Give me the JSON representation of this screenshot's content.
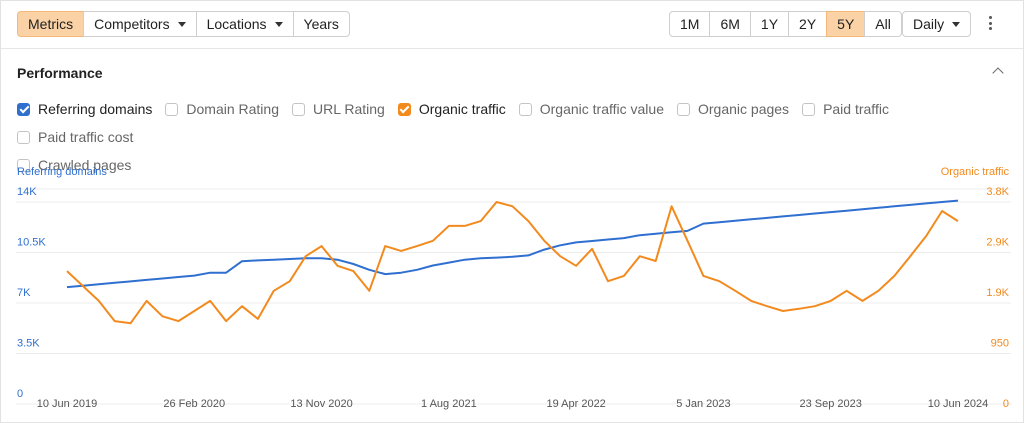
{
  "toolbar": {
    "left": [
      {
        "label": "Metrics",
        "active": true,
        "dropdown": false
      },
      {
        "label": "Competitors",
        "active": false,
        "dropdown": true
      },
      {
        "label": "Locations",
        "active": false,
        "dropdown": true
      },
      {
        "label": "Years",
        "active": false,
        "dropdown": false
      }
    ],
    "ranges": [
      {
        "label": "1M",
        "active": false
      },
      {
        "label": "6M",
        "active": false
      },
      {
        "label": "1Y",
        "active": false
      },
      {
        "label": "2Y",
        "active": false
      },
      {
        "label": "5Y",
        "active": true
      },
      {
        "label": "All",
        "active": false
      }
    ],
    "interval": {
      "label": "Daily",
      "dropdown": true
    }
  },
  "performance": {
    "title": "Performance",
    "metrics": [
      {
        "label": "Referring domains",
        "checked": true,
        "color": "#2f6fd0"
      },
      {
        "label": "Domain Rating",
        "checked": false
      },
      {
        "label": "URL Rating",
        "checked": false
      },
      {
        "label": "Organic traffic",
        "checked": true,
        "color": "#f28a1e"
      },
      {
        "label": "Organic traffic value",
        "checked": false
      },
      {
        "label": "Organic pages",
        "checked": false
      },
      {
        "label": "Paid traffic",
        "checked": false
      },
      {
        "label": "Paid traffic cost",
        "checked": false
      },
      {
        "label": "Crawled pages",
        "checked": false
      }
    ]
  },
  "chart_data": {
    "type": "line",
    "y_label": "Referring domains",
    "y2_label": "Organic traffic",
    "categories": [
      "10 Jun 2019",
      null,
      null,
      null,
      null,
      null,
      null,
      null,
      "26 Feb 2020",
      null,
      null,
      null,
      null,
      null,
      null,
      null,
      "13 Nov 2020",
      null,
      null,
      null,
      null,
      null,
      null,
      null,
      "1 Aug 2021",
      null,
      null,
      null,
      null,
      null,
      null,
      null,
      "19 Apr 2022",
      null,
      null,
      null,
      null,
      null,
      null,
      null,
      "5 Jan 2023",
      null,
      null,
      null,
      null,
      null,
      null,
      null,
      "23 Sep 2023",
      null,
      null,
      null,
      null,
      null,
      null,
      null,
      "10 Jun 2024"
    ],
    "series": [
      {
        "name": "Referring domains",
        "color": "#2f6fd0",
        "axis": "y",
        "values": [
          8100,
          8200,
          8300,
          8400,
          8500,
          8600,
          8700,
          8800,
          8900,
          9100,
          9100,
          9900,
          9950,
          10000,
          10050,
          10100,
          10100,
          10000,
          9700,
          9300,
          9000,
          9100,
          9300,
          9600,
          9800,
          10000,
          10100,
          10150,
          10200,
          10300,
          10700,
          11000,
          11200,
          11300,
          11400,
          11500,
          11700,
          11800,
          11900,
          12000,
          12500,
          12600,
          12700,
          12800,
          12900,
          13000,
          13100,
          13200,
          13300,
          13400,
          13500,
          13600,
          13700,
          13800,
          13900,
          14000,
          14100
        ]
      },
      {
        "name": "Organic traffic",
        "color": "#f28a1e",
        "axis": "y2",
        "values": [
          2500,
          2220,
          1940,
          1560,
          1520,
          1940,
          1650,
          1560,
          1750,
          1940,
          1560,
          1840,
          1600,
          2130,
          2310,
          2780,
          2970,
          2600,
          2500,
          2130,
          2970,
          2880,
          2970,
          3070,
          3350,
          3350,
          3440,
          3800,
          3720,
          3440,
          3070,
          2780,
          2600,
          2920,
          2310,
          2410,
          2780,
          2690,
          3720,
          3070,
          2410,
          2310,
          2130,
          1940,
          1840,
          1750,
          1790,
          1840,
          1940,
          2130,
          1940,
          2130,
          2410,
          2780,
          3160,
          3630,
          3440
        ]
      }
    ],
    "ylim": [
      0,
      14000
    ],
    "yticks": [
      0,
      {
        "value": 3500,
        "label": "3.5K"
      },
      {
        "value": 7000,
        "label": "7K"
      },
      {
        "value": 10500,
        "label": "10.5K"
      },
      {
        "value": 14000,
        "label": "14K"
      }
    ],
    "y2lim": [
      0,
      3800
    ],
    "y2ticks": [
      0,
      950,
      {
        "value": 1900,
        "label": "1.9K"
      },
      {
        "value": 2850,
        "label": "2.9K"
      },
      {
        "value": 3800,
        "label": "3.8K"
      }
    ],
    "grid": true
  }
}
